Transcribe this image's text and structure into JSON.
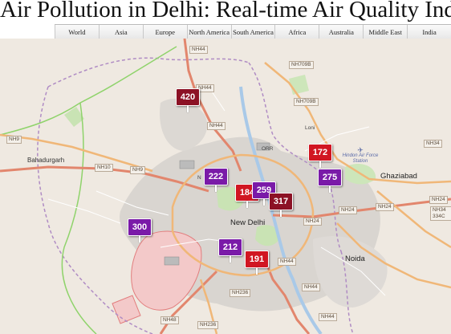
{
  "page": {
    "title": "Air Pollution in Delhi: Real-time Air Quality Index V"
  },
  "nav": [
    "World",
    "Asia",
    "Europe",
    "North America",
    "South America",
    "Africa",
    "Australia",
    "Middle East",
    "India"
  ],
  "stations": [
    {
      "value": "420",
      "level": "hazardous"
    },
    {
      "value": "172",
      "level": "unhealthy"
    },
    {
      "value": "222",
      "level": "very-unhealthy"
    },
    {
      "value": "275",
      "level": "very-unhealthy"
    },
    {
      "value": "184",
      "level": "unhealthy"
    },
    {
      "value": "259",
      "level": "very-unhealthy"
    },
    {
      "value": "317",
      "level": "hazardous"
    },
    {
      "value": "300",
      "level": "very-unhealthy"
    },
    {
      "value": "212",
      "level": "very-unhealthy"
    },
    {
      "value": "191",
      "level": "unhealthy"
    }
  ],
  "level_colors": {
    "unhealthy": "#d11622",
    "very-unhealthy": "#7a1aa8",
    "hazardous": "#8c1225"
  },
  "places": {
    "new_delhi": "New Delhi",
    "noida": "Noida",
    "ghaziabad": "Ghaziabad",
    "bahadurgarh": "Bahadurgarh",
    "loni": "Loni",
    "orr": "ORR",
    "hindon": "Hindon Air Force Station",
    "partial_label": "N"
  },
  "roads": [
    "NH44",
    "NH44",
    "NH709B",
    "NH709B",
    "NH44",
    "NH9",
    "NH10",
    "NH9",
    "NH34",
    "NH24",
    "NH24",
    "NH24",
    "NH24",
    "NH44",
    "NH34 334C",
    "NH236",
    "NH236",
    "NH48",
    "NH44",
    "NH44"
  ]
}
